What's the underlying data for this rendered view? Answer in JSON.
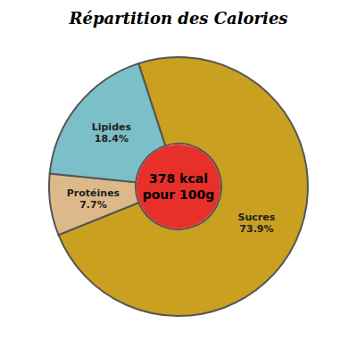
{
  "chart_data": {
    "type": "pie",
    "title": "Répartition des Calories",
    "categories": [
      "Sucres",
      "Protéines",
      "Lipides"
    ],
    "values": [
      73.9,
      7.7,
      18.4
    ],
    "value_labels": [
      "73.9%",
      "7.7%",
      "18.4%"
    ],
    "data_labels": true,
    "colors": [
      "#C9A020",
      "#DDB98A",
      "#7BBFC8"
    ],
    "annotations": [
      "378 kcal",
      "pour 100g"
    ],
    "color": "#E8302A"
  }
}
